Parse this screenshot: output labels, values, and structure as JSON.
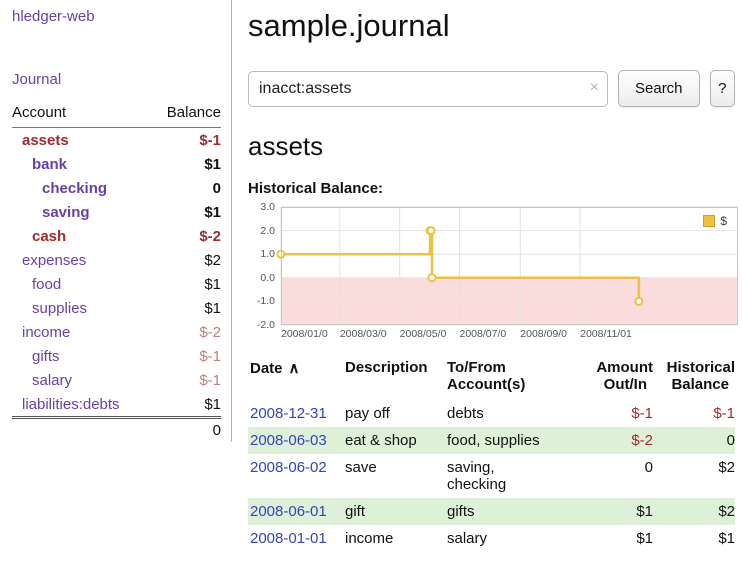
{
  "palette": {
    "link_purple": "#6a3fa6",
    "date_blue": "#3344bb",
    "neg_strong": "#a02c2c",
    "neg_soft": "#c47e7e",
    "row_green": "#dff0d8",
    "chart_line": "#edc240",
    "chart_fill_negative": "#fbdcdc"
  },
  "sidebar": {
    "app_title": "hledger-web",
    "journal_link": "Journal",
    "header": {
      "account": "Account",
      "balance": "Balance"
    },
    "accounts": [
      {
        "name": "assets",
        "balance": "$-1",
        "indent": 0,
        "name_cls": "neg bold",
        "bal_cls": "neg bold"
      },
      {
        "name": "bank",
        "balance": "$1",
        "indent": 1,
        "name_cls": "bold",
        "bal_cls": "bold"
      },
      {
        "name": "checking",
        "balance": "0",
        "indent": 2,
        "name_cls": "bold",
        "bal_cls": "bold"
      },
      {
        "name": "saving",
        "balance": "$1",
        "indent": 2,
        "name_cls": "bold",
        "bal_cls": "bold"
      },
      {
        "name": "cash",
        "balance": "$-2",
        "indent": 1,
        "name_cls": "neg bold",
        "bal_cls": "neg bold"
      },
      {
        "name": "expenses",
        "balance": "$2",
        "indent": 0,
        "name_cls": "",
        "bal_cls": ""
      },
      {
        "name": "food",
        "balance": "$1",
        "indent": 1,
        "name_cls": "",
        "bal_cls": ""
      },
      {
        "name": "supplies",
        "balance": "$1",
        "indent": 1,
        "name_cls": "",
        "bal_cls": ""
      },
      {
        "name": "income",
        "balance": "$-2",
        "indent": 0,
        "name_cls": "",
        "bal_cls": "negsoft"
      },
      {
        "name": "gifts",
        "balance": "$-1",
        "indent": 1,
        "name_cls": "",
        "bal_cls": "negsoft"
      },
      {
        "name": "salary",
        "balance": "$-1",
        "indent": 1,
        "name_cls": "",
        "bal_cls": "negsoft"
      },
      {
        "name": "liabilities:debts",
        "balance": "$1",
        "indent": 0,
        "name_cls": "",
        "bal_cls": ""
      }
    ],
    "total": "0"
  },
  "main": {
    "title": "sample.journal",
    "search": {
      "value": "inacct:assets",
      "clear": "×",
      "button": "Search",
      "help": "?"
    },
    "account_heading": "assets",
    "chart_label": "Historical Balance:"
  },
  "chart_data": {
    "type": "line",
    "title": "Historical Balance",
    "legend": "$",
    "step": true,
    "grid": true,
    "legend_position": "top-right",
    "ylim": [
      -2,
      3
    ],
    "yticks": [
      {
        "label": "3.0",
        "v": 3
      },
      {
        "label": "2.0",
        "v": 2
      },
      {
        "label": "1.0",
        "v": 1
      },
      {
        "label": "0.0",
        "v": 0
      },
      {
        "label": "-1.0",
        "v": -1
      },
      {
        "label": "-2.0",
        "v": -2
      }
    ],
    "range_days": 466,
    "xticks": [
      {
        "label": "2008/01/0",
        "day": 0
      },
      {
        "label": "2008/03/0",
        "day": 60
      },
      {
        "label": "2008/05/0",
        "day": 121
      },
      {
        "label": "2008/07/0",
        "day": 182
      },
      {
        "label": "2008/09/0",
        "day": 244
      },
      {
        "label": "2008/11/01",
        "day": 305
      }
    ],
    "series": [
      {
        "name": "$",
        "dates": [
          "2008-01-01",
          "2008-06-01",
          "2008-06-02",
          "2008-06-03",
          "2008-12-31"
        ],
        "values": [
          1,
          2,
          2,
          0,
          -1
        ],
        "points": [
          [
            0,
            1
          ],
          [
            152,
            2
          ],
          [
            153,
            2
          ],
          [
            154,
            0
          ],
          [
            365,
            -1
          ]
        ]
      }
    ],
    "negative_region": true
  },
  "register": {
    "columns": [
      {
        "label": "Date",
        "sort": "∧",
        "align": "left"
      },
      {
        "label": "Description",
        "sort": "",
        "align": "left"
      },
      {
        "label": "To/From\nAccount(s)",
        "sort": "",
        "align": "left"
      },
      {
        "label": "Amount\nOut/In",
        "sort": "",
        "align": "right"
      },
      {
        "label": "Historical\nBalance",
        "sort": "",
        "align": "right"
      }
    ],
    "rows": [
      {
        "date": "2008-12-31",
        "description": "pay off",
        "accounts": "debts",
        "amount": "$-1",
        "amount_cls": "neg",
        "balance": "$-1",
        "balance_cls": "neg"
      },
      {
        "date": "2008-06-03",
        "description": "eat & shop",
        "accounts": "food, supplies",
        "amount": "$-2",
        "amount_cls": "neg",
        "balance": "0",
        "balance_cls": ""
      },
      {
        "date": "2008-06-02",
        "description": "save",
        "accounts": "saving,\nchecking",
        "amount": "0",
        "amount_cls": "",
        "balance": "$2",
        "balance_cls": ""
      },
      {
        "date": "2008-06-01",
        "description": "gift",
        "accounts": "gifts",
        "amount": "$1",
        "amount_cls": "",
        "balance": "$2",
        "balance_cls": ""
      },
      {
        "date": "2008-01-01",
        "description": "income",
        "accounts": "salary",
        "amount": "$1",
        "amount_cls": "",
        "balance": "$1",
        "balance_cls": ""
      }
    ]
  }
}
